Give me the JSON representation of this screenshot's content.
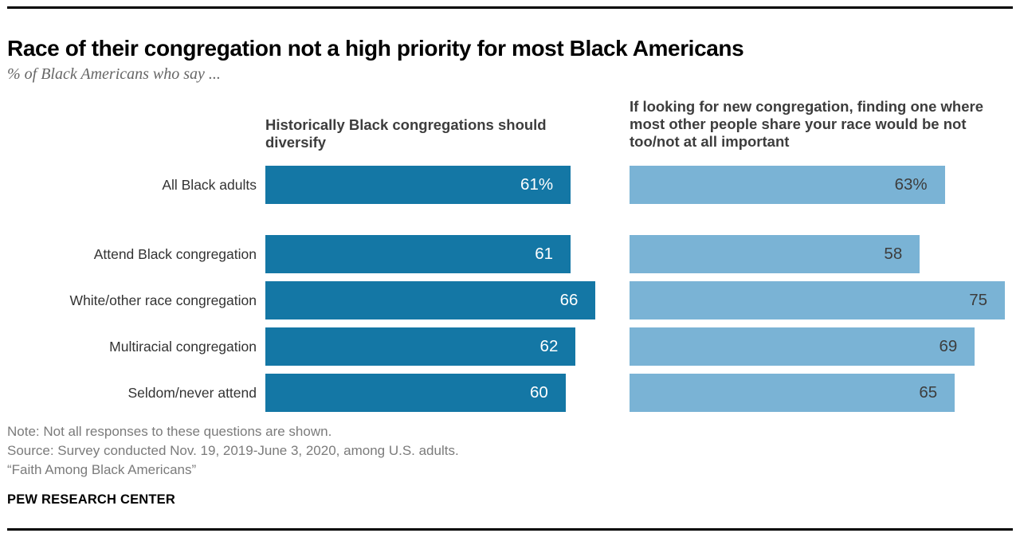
{
  "header": {
    "title": "Race of their congregation not a high priority for most Black Americans",
    "subtitle": "% of Black Americans who say ..."
  },
  "chart_data": {
    "type": "bar",
    "orientation": "horizontal",
    "grid": false,
    "axis_labels_shown": false,
    "xlim": [
      0,
      100
    ],
    "categories": [
      "All Black adults",
      "Attend Black congregation",
      "White/other race congregation",
      "Multiracial congregation",
      "Seldom/never attend"
    ],
    "series": [
      {
        "name": "Historically Black congregations should diversify",
        "name_lines": [
          "Historically Black congregations should diversify"
        ],
        "values": [
          61,
          61,
          66,
          62,
          60
        ],
        "value_labels": [
          "61%",
          "61",
          "66",
          "62",
          "60"
        ],
        "color": "#1477a5",
        "value_label_color": "#ffffff"
      },
      {
        "name": "If looking for new congregation, finding one where most other people share your race would be not too/not at all important",
        "name_lines": [
          "If looking for new congregation, finding one where most other people share your race would be not too/not at all important"
        ],
        "values": [
          63,
          58,
          75,
          69,
          65
        ],
        "value_labels": [
          "63%",
          "58",
          "75",
          "69",
          "65"
        ],
        "color": "#7ab3d5",
        "value_label_color": "#3d3d3d"
      }
    ]
  },
  "footer": {
    "note": "Note: Not all responses to these questions are shown.",
    "source": "Source: Survey conducted Nov. 19, 2019-June 3, 2020, among U.S. adults.",
    "report_title": "“Faith Among Black Americans”",
    "brand": "PEW RESEARCH CENTER"
  }
}
